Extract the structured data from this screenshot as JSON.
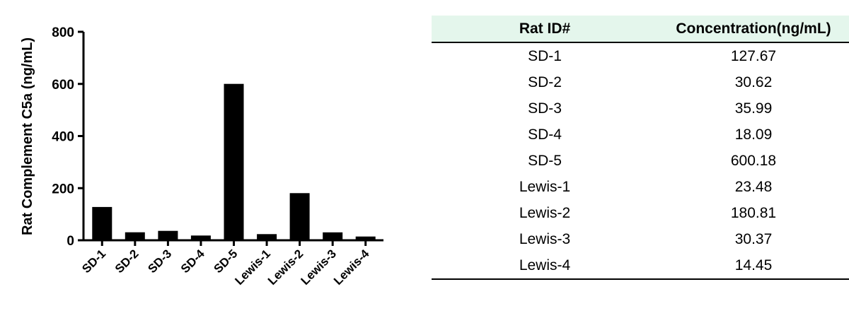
{
  "chart_data": {
    "type": "bar",
    "categories": [
      "SD-1",
      "SD-2",
      "SD-3",
      "SD-4",
      "SD-5",
      "Lewis-1",
      "Lewis-2",
      "Lewis-3",
      "Lewis-4"
    ],
    "values": [
      127.67,
      30.62,
      35.99,
      18.09,
      600.18,
      23.48,
      180.81,
      30.37,
      14.45
    ],
    "title": "",
    "xlabel": "",
    "ylabel": "Rat Complement C5a (ng/mL)",
    "ylim": [
      0,
      800
    ],
    "yticks": [
      "0",
      "200",
      "400",
      "600",
      "800"
    ],
    "bar_color": "#000000",
    "grid": false,
    "legend": "none"
  },
  "table": {
    "header_color": "#e4f6ec",
    "headers": [
      "Rat ID#",
      "Concentration(ng/mL)"
    ],
    "rows": [
      [
        "SD-1",
        "127.67"
      ],
      [
        "SD-2",
        "30.62"
      ],
      [
        "SD-3",
        "35.99"
      ],
      [
        "SD-4",
        "18.09"
      ],
      [
        "SD-5",
        "600.18"
      ],
      [
        "Lewis-1",
        "23.48"
      ],
      [
        "Lewis-2",
        "180.81"
      ],
      [
        "Lewis-3",
        "30.37"
      ],
      [
        "Lewis-4",
        "14.45"
      ]
    ]
  }
}
